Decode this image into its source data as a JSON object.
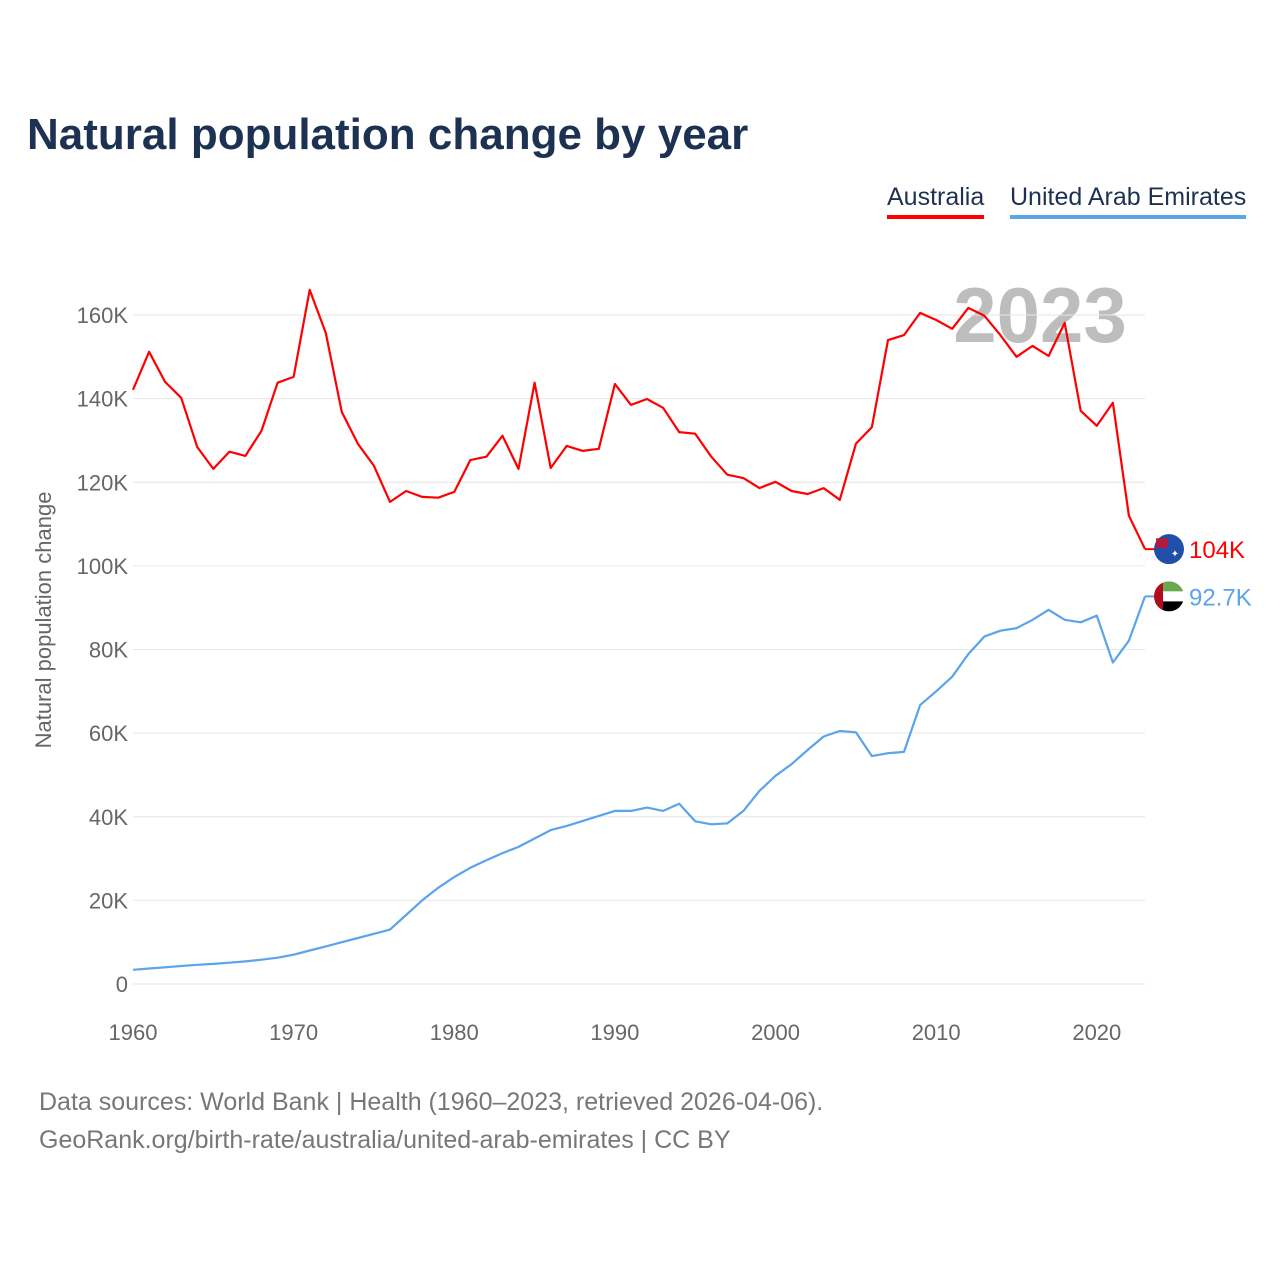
{
  "chart_data": {
    "type": "line",
    "title": "Natural population change by year",
    "xlabel": "",
    "ylabel": "Natural population change",
    "xlim": [
      1960,
      2023
    ],
    "ylim": [
      0,
      170000
    ],
    "grid": true,
    "legend_position": "top-right",
    "current_year_label": "2023",
    "x_ticks": [
      1960,
      1970,
      1980,
      1990,
      2000,
      2010,
      2020
    ],
    "x_tick_labels": [
      "1960",
      "1970",
      "1980",
      "1990",
      "2000",
      "2010",
      "2020"
    ],
    "y_ticks": [
      0,
      20000,
      40000,
      60000,
      80000,
      100000,
      120000,
      140000,
      160000
    ],
    "y_tick_labels": [
      "0",
      "20K",
      "40K",
      "60K",
      "80K",
      "100K",
      "120K",
      "140K",
      "160K"
    ],
    "x": [
      1960,
      1961,
      1962,
      1963,
      1964,
      1965,
      1966,
      1967,
      1968,
      1969,
      1970,
      1971,
      1972,
      1973,
      1974,
      1975,
      1976,
      1977,
      1978,
      1979,
      1980,
      1981,
      1982,
      1983,
      1984,
      1985,
      1986,
      1987,
      1988,
      1989,
      1990,
      1991,
      1992,
      1993,
      1994,
      1995,
      1996,
      1997,
      1998,
      1999,
      2000,
      2001,
      2002,
      2003,
      2004,
      2005,
      2006,
      2007,
      2008,
      2009,
      2010,
      2011,
      2012,
      2013,
      2014,
      2015,
      2016,
      2017,
      2018,
      2019,
      2020,
      2021,
      2022,
      2023
    ],
    "series": [
      {
        "name": "Australia",
        "color": "#ff0000",
        "end_label": "104K",
        "flag": "australia-flag",
        "values": [
          142100,
          151200,
          144000,
          140200,
          128400,
          123200,
          127300,
          126300,
          132300,
          143800,
          145200,
          166000,
          155700,
          136800,
          129200,
          123900,
          115300,
          117900,
          116500,
          116300,
          117700,
          125300,
          126100,
          131100,
          123200,
          143800,
          123400,
          128700,
          127500,
          128000,
          143500,
          138500,
          139900,
          137800,
          132000,
          131600,
          126100,
          121800,
          121000,
          118600,
          120100,
          117900,
          117200,
          118600,
          115800,
          129200,
          133200,
          154000,
          155200,
          160500,
          158800,
          156700,
          161700,
          159800,
          155200,
          150000,
          152600,
          150200,
          158100,
          137100,
          133500,
          139000,
          112000,
          104000
        ]
      },
      {
        "name": "United Arab Emirates",
        "color": "#5ba3ea",
        "end_label": "92.7K",
        "flag": "uae-flag",
        "values": [
          3400,
          3700,
          4000,
          4300,
          4600,
          4800,
          5100,
          5400,
          5800,
          6300,
          7000,
          8000,
          9000,
          10000,
          11000,
          12000,
          13000,
          16500,
          20000,
          23000,
          25600,
          27800,
          29600,
          31300,
          32800,
          34800,
          36800,
          37800,
          39000,
          40200,
          41400,
          41400,
          42200,
          41400,
          43100,
          38900,
          38200,
          38400,
          41400,
          46200,
          49800,
          52600,
          56000,
          59200,
          60500,
          60200,
          54500,
          55200,
          55500,
          66700,
          70000,
          73500,
          78900,
          83100,
          84500,
          85100,
          87100,
          89500,
          87100,
          86500,
          88100,
          76900,
          82100,
          92700
        ]
      }
    ]
  },
  "footer": {
    "line1": "Data sources: World Bank | Health (1960–2023, retrieved 2026-04-06).",
    "line2": "GeoRank.org/birth-rate/australia/united-arab-emirates | CC BY"
  }
}
